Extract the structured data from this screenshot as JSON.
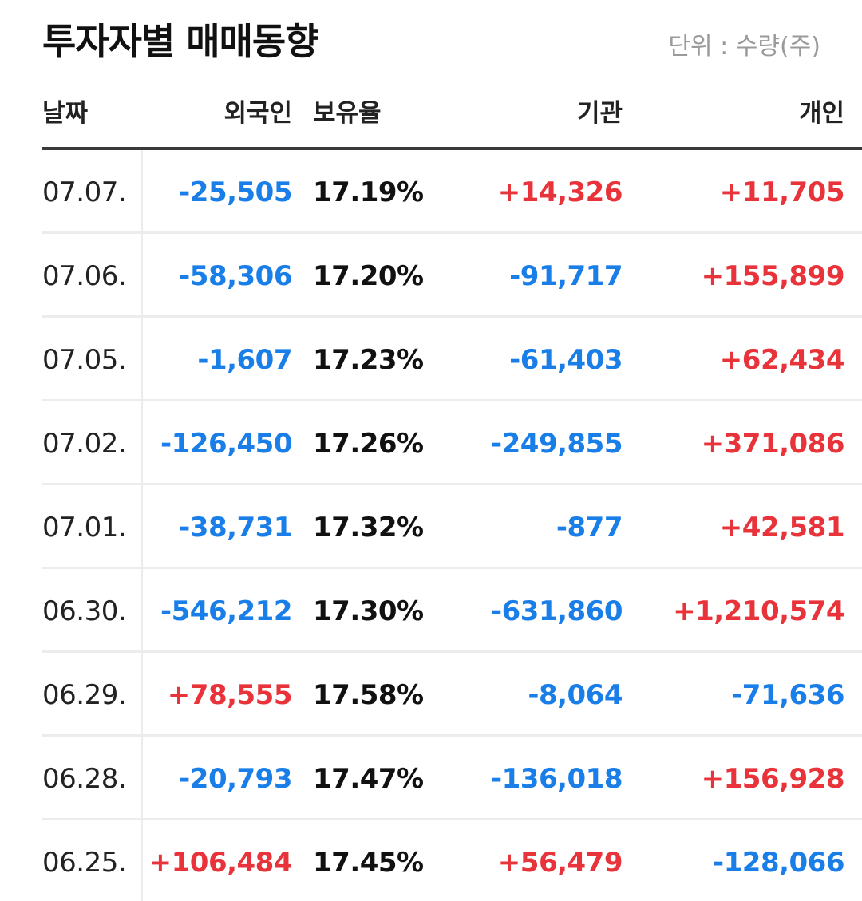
{
  "title": "투자자별 매매동향",
  "unit_label": "단위 : 수량(주)",
  "headers": {
    "date": "날짜",
    "foreign": "외국인",
    "ratio": "보유율",
    "institution": "기관",
    "individual": "개인"
  },
  "colors": {
    "negative": "#1a7ee8",
    "positive": "#e8333a"
  },
  "rows": [
    {
      "date": "07.07.",
      "foreign": "-25,505",
      "ratio": "17.19%",
      "institution": "+14,326",
      "individual": "+11,705"
    },
    {
      "date": "07.06.",
      "foreign": "-58,306",
      "ratio": "17.20%",
      "institution": "-91,717",
      "individual": "+155,899"
    },
    {
      "date": "07.05.",
      "foreign": "-1,607",
      "ratio": "17.23%",
      "institution": "-61,403",
      "individual": "+62,434"
    },
    {
      "date": "07.02.",
      "foreign": "-126,450",
      "ratio": "17.26%",
      "institution": "-249,855",
      "individual": "+371,086"
    },
    {
      "date": "07.01.",
      "foreign": "-38,731",
      "ratio": "17.32%",
      "institution": "-877",
      "individual": "+42,581"
    },
    {
      "date": "06.30.",
      "foreign": "-546,212",
      "ratio": "17.30%",
      "institution": "-631,860",
      "individual": "+1,210,574"
    },
    {
      "date": "06.29.",
      "foreign": "+78,555",
      "ratio": "17.58%",
      "institution": "-8,064",
      "individual": "-71,636"
    },
    {
      "date": "06.28.",
      "foreign": "-20,793",
      "ratio": "17.47%",
      "institution": "-136,018",
      "individual": "+156,928"
    },
    {
      "date": "06.25.",
      "foreign": "+106,484",
      "ratio": "17.45%",
      "institution": "+56,479",
      "individual": "-128,066"
    }
  ]
}
